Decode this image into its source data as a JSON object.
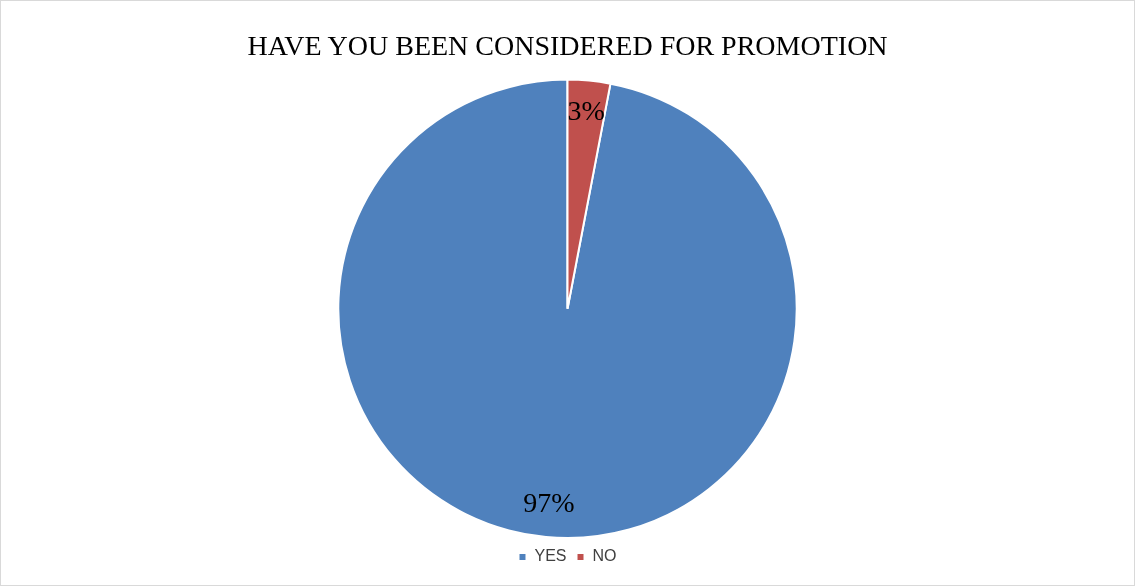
{
  "chart_data": {
    "type": "pie",
    "title": "HAVE YOU BEEN CONSIDERED FOR PROMOTION",
    "categories": [
      "YES",
      "NO"
    ],
    "values": [
      97,
      3
    ],
    "colors": [
      "#4f81bd",
      "#c0504d"
    ],
    "value_labels": [
      "97%",
      "3%"
    ],
    "legend": "bottom"
  }
}
